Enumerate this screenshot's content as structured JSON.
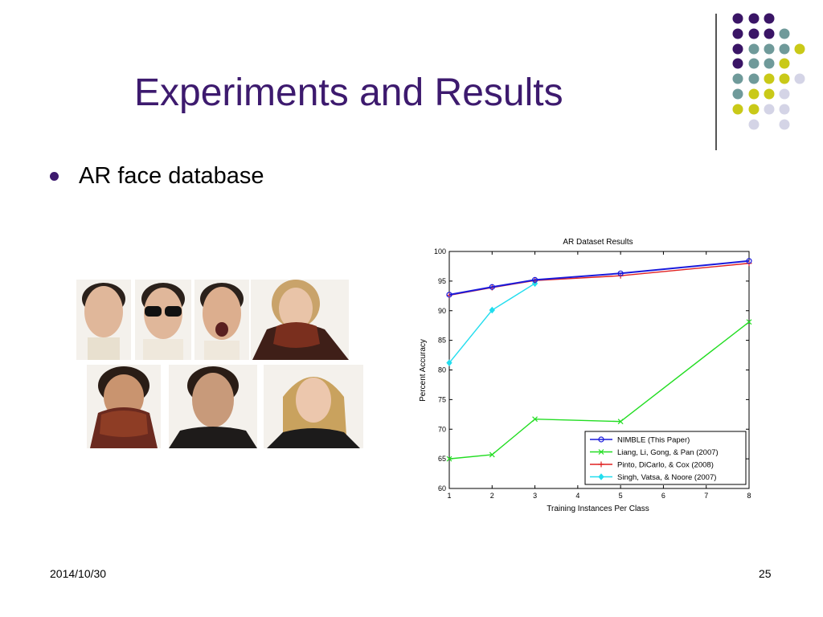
{
  "slide": {
    "title": "Experiments and Results",
    "bullet": "AR face database",
    "footer_date": "2014/10/30",
    "page_number": "25"
  },
  "faces": [
    {
      "name": "face-neutral-man",
      "occlusion": "none"
    },
    {
      "name": "face-sunglasses-man",
      "occlusion": "sunglasses"
    },
    {
      "name": "face-screaming-man",
      "occlusion": "none"
    },
    {
      "name": "face-scarf-woman",
      "occlusion": "scarf"
    },
    {
      "name": "face-scarf-man",
      "occlusion": "scarf"
    },
    {
      "name": "face-neutral-man-2",
      "occlusion": "none"
    },
    {
      "name": "face-neutral-woman",
      "occlusion": "none"
    }
  ],
  "chart_data": {
    "type": "line",
    "title": "AR Dataset Results",
    "xlabel": "Training Instances Per Class",
    "ylabel": "Percent Accuracy",
    "xlim": [
      1,
      8
    ],
    "ylim": [
      60,
      100
    ],
    "xticks": [
      1,
      2,
      3,
      4,
      5,
      6,
      7,
      8
    ],
    "yticks": [
      60,
      65,
      70,
      75,
      80,
      85,
      90,
      95,
      100
    ],
    "grid": false,
    "legend_position": "bottom-right",
    "series": [
      {
        "name": "NIMBLE (This Paper)",
        "color": "#1a1adb",
        "marker": "o",
        "x": [
          1,
          2,
          3,
          5,
          8
        ],
        "values": [
          92.7,
          94.0,
          95.2,
          96.3,
          98.4
        ]
      },
      {
        "name": "Liang, Li, Gong, & Pan (2007)",
        "color": "#22dd22",
        "marker": "x",
        "x": [
          1,
          2,
          3,
          5,
          8
        ],
        "values": [
          65.0,
          65.7,
          71.7,
          71.3,
          88.1
        ]
      },
      {
        "name": "Pinto, DiCarlo, & Cox (2008)",
        "color": "#e02020",
        "marker": "+",
        "x": [
          1,
          2,
          3,
          5,
          8
        ],
        "values": [
          92.6,
          93.9,
          95.1,
          95.9,
          98.0
        ]
      },
      {
        "name": "Singh, Vatsa, & Noore (2007)",
        "color": "#22ddee",
        "marker": "d",
        "x": [
          1,
          2,
          3
        ],
        "values": [
          81.2,
          90.1,
          94.6
        ]
      }
    ]
  },
  "theme": {
    "title_color": "#3d1a6e",
    "dot_colors": {
      "purple": "#3a1566",
      "teal": "#6f9a9a",
      "yellow": "#c9c918",
      "lavender": "#d4d4e6"
    }
  }
}
